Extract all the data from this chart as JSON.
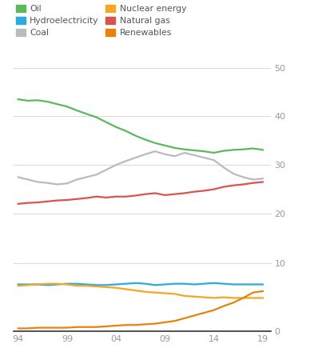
{
  "years": [
    1994,
    1995,
    1996,
    1997,
    1998,
    1999,
    2000,
    2001,
    2002,
    2003,
    2004,
    2005,
    2006,
    2007,
    2008,
    2009,
    2010,
    2011,
    2012,
    2013,
    2014,
    2015,
    2016,
    2017,
    2018,
    2019
  ],
  "oil": [
    43.5,
    43.2,
    43.3,
    43.0,
    42.5,
    42.0,
    41.2,
    40.5,
    39.8,
    38.8,
    37.8,
    37.0,
    36.0,
    35.2,
    34.5,
    34.0,
    33.5,
    33.2,
    33.0,
    32.8,
    32.5,
    32.9,
    33.1,
    33.2,
    33.4,
    33.1
  ],
  "coal": [
    27.5,
    27.0,
    26.5,
    26.3,
    26.0,
    26.2,
    27.0,
    27.5,
    28.0,
    29.0,
    30.0,
    30.8,
    31.5,
    32.2,
    32.8,
    32.2,
    31.8,
    32.5,
    32.0,
    31.5,
    31.0,
    29.5,
    28.2,
    27.5,
    27.0,
    27.2
  ],
  "natural_gas": [
    22.0,
    22.2,
    22.3,
    22.5,
    22.7,
    22.8,
    23.0,
    23.2,
    23.5,
    23.3,
    23.5,
    23.5,
    23.7,
    24.0,
    24.2,
    23.8,
    24.0,
    24.2,
    24.5,
    24.7,
    25.0,
    25.5,
    25.8,
    26.0,
    26.3,
    26.5
  ],
  "hydro": [
    6.9,
    6.9,
    6.9,
    6.8,
    6.9,
    7.0,
    7.0,
    6.9,
    6.8,
    6.8,
    6.9,
    7.0,
    7.1,
    7.0,
    6.8,
    6.9,
    7.0,
    7.0,
    6.9,
    7.0,
    7.1,
    7.0,
    6.9,
    6.9,
    6.9,
    6.9
  ],
  "nuclear": [
    6.7,
    6.8,
    6.9,
    7.0,
    7.0,
    6.9,
    6.7,
    6.7,
    6.6,
    6.5,
    6.4,
    6.2,
    6.0,
    5.8,
    5.7,
    5.6,
    5.5,
    5.2,
    5.1,
    5.0,
    4.9,
    5.0,
    4.9,
    4.9,
    4.9,
    4.9
  ],
  "renewables": [
    0.4,
    0.4,
    0.5,
    0.5,
    0.5,
    0.5,
    0.6,
    0.6,
    0.6,
    0.7,
    0.8,
    0.9,
    0.9,
    1.0,
    1.1,
    1.3,
    1.5,
    1.9,
    2.3,
    2.7,
    3.1,
    3.7,
    4.2,
    4.9,
    5.7,
    5.9
  ],
  "oil_color": "#5cb85c",
  "coal_color": "#bbbbbb",
  "gas_color": "#d9534f",
  "hydro_color": "#29abe2",
  "nuclear_color": "#f5a623",
  "renewables_color": "#e8820c",
  "background_color": "#ffffff",
  "grid_color": "#d8d8d8",
  "tick_color": "#999999",
  "xtick_years": [
    1994,
    1999,
    2004,
    2009,
    2014,
    2019
  ],
  "xtick_labels": [
    "94",
    "99",
    "04",
    "09",
    "14",
    "19"
  ]
}
